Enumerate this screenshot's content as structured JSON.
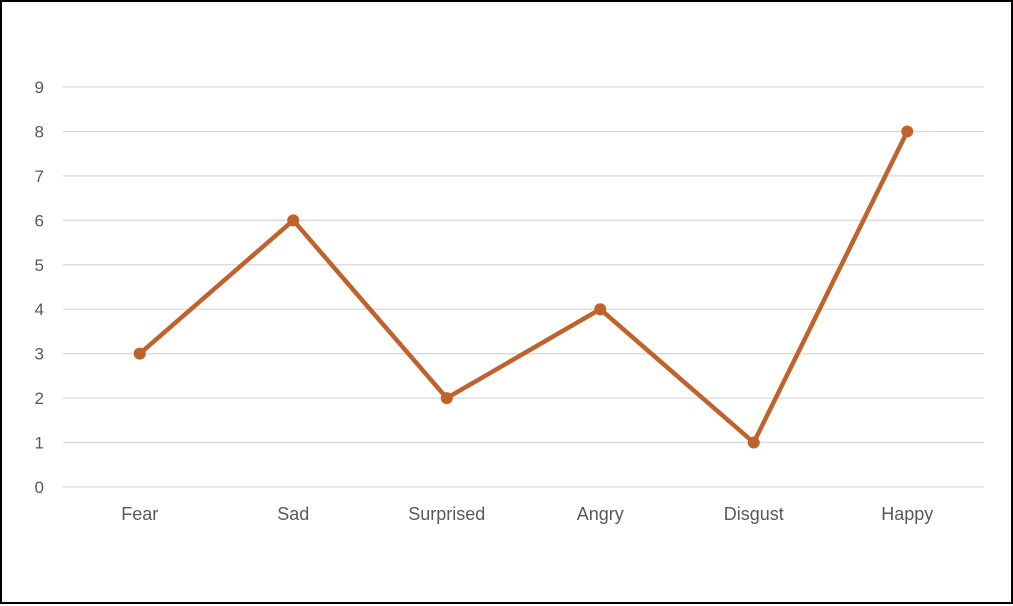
{
  "chart_data": {
    "type": "line",
    "title": "",
    "xlabel": "",
    "ylabel": "",
    "categories": [
      "Fear",
      "Sad",
      "Surprised",
      "Angry",
      "Disgust",
      "Happy"
    ],
    "series": [
      {
        "values": [
          3,
          6,
          2,
          4,
          1,
          8
        ],
        "color": "#C0622B"
      }
    ],
    "ylim": [
      0,
      9
    ],
    "yticks": [
      "0",
      "1",
      "2",
      "3",
      "4",
      "5",
      "6",
      "7",
      "8",
      "9"
    ],
    "grid": true,
    "legend": "none",
    "gridline_color": "#D9D9D9",
    "label_color": "#595959"
  }
}
